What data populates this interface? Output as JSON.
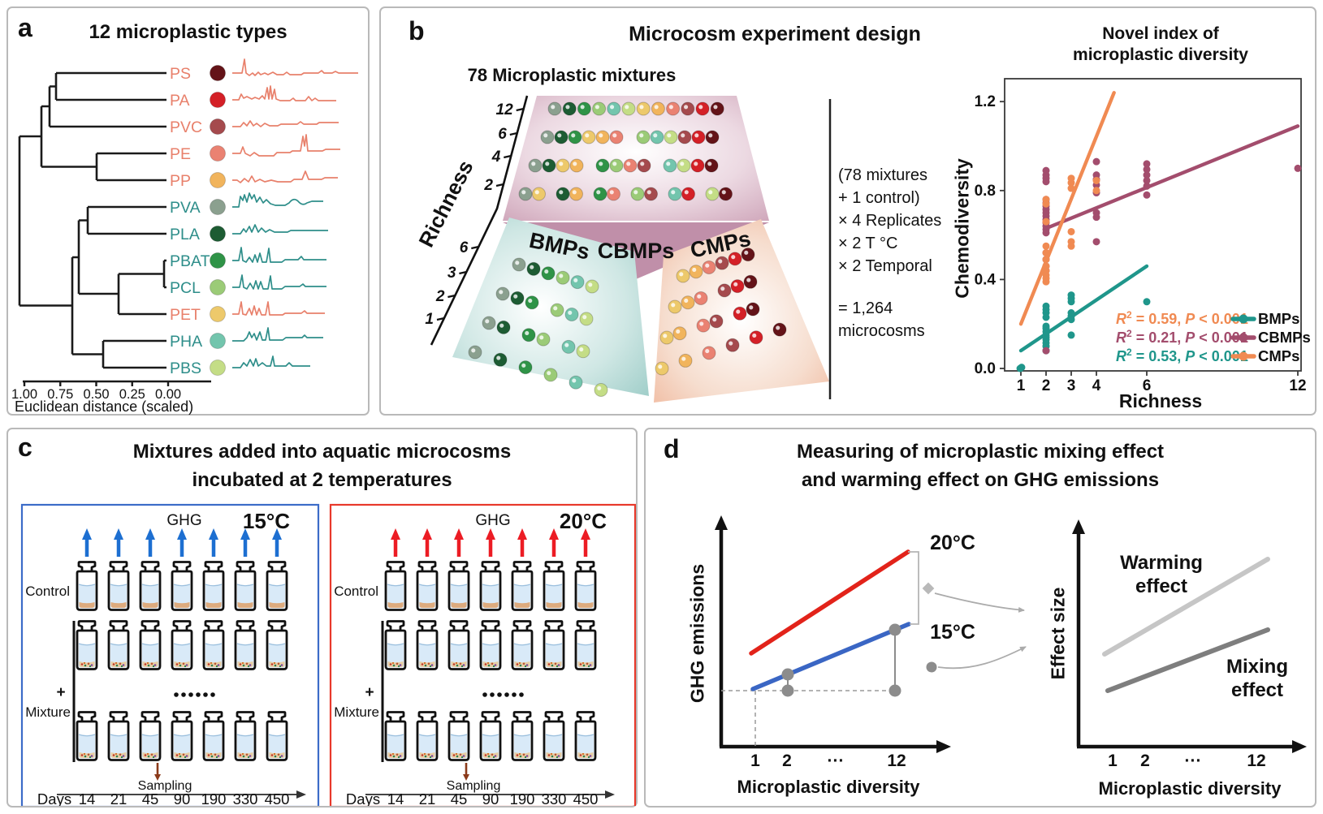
{
  "palette": {
    "grayGreen": "#8ba08f",
    "darkGreen": "#1d5c33",
    "green": "#2f9347",
    "lightGreen": "#9bcb77",
    "tealGreen": "#73c5ad",
    "lime": "#c4dd86",
    "yellow": "#edc96b",
    "orange": "#f1b45c",
    "salmon": "#ea8272",
    "brownRed": "#a54a4d",
    "red": "#d42027",
    "maroon": "#641318"
  },
  "figure": {
    "panel_a": {
      "label": "a",
      "title": "12 microplastic types",
      "group_colors": {
        "petro": "#e8806b",
        "bio": "#2e8e8a"
      },
      "types": [
        {
          "name": "PS",
          "group": "petro",
          "color": "maroon"
        },
        {
          "name": "PA",
          "group": "petro",
          "color": "red"
        },
        {
          "name": "PVC",
          "group": "petro",
          "color": "brownRed"
        },
        {
          "name": "PE",
          "group": "petro",
          "color": "salmon"
        },
        {
          "name": "PP",
          "group": "petro",
          "color": "orange"
        },
        {
          "name": "PVA",
          "group": "bio",
          "color": "grayGreen"
        },
        {
          "name": "PLA",
          "group": "bio",
          "color": "darkGreen"
        },
        {
          "name": "PBAT",
          "group": "bio",
          "color": "green"
        },
        {
          "name": "PCL",
          "group": "bio",
          "color": "lightGreen"
        },
        {
          "name": "PET",
          "group": "petro",
          "color": "yellow"
        },
        {
          "name": "PHA",
          "group": "bio",
          "color": "tealGreen"
        },
        {
          "name": "PBS",
          "group": "bio",
          "color": "lime"
        }
      ],
      "axis_ticks": [
        "1.00",
        "0.75",
        "0.50",
        "0.25",
        "0.00"
      ],
      "axis_label": "Euclidean distance (scaled)"
    },
    "panel_b": {
      "label": "b",
      "title": "Microcosm experiment design",
      "subtitle": "78 Microplastic mixtures",
      "richness_axis_label": "Richness",
      "upper_ticks": [
        "12",
        "6",
        "4",
        "2"
      ],
      "lower_ticks": [
        "6",
        "3",
        "2",
        "1"
      ],
      "group_labels": {
        "cbmps": "CBMPs",
        "bmps": "BMPs",
        "cmps": "CMPs"
      },
      "stats_lines": [
        "(78 mixtures",
        " + 1 control)",
        "× 4 Replicates",
        "× 2 T °C",
        "× 2 Temporal",
        "= 1,264",
        "microcosms"
      ],
      "cbmps_rows": [
        [
          [
            "grayGreen",
            "darkGreen",
            "green",
            "lightGreen",
            "tealGreen",
            "lime",
            "yellow",
            "orange",
            "salmon",
            "brownRed",
            "red",
            "maroon"
          ]
        ],
        [
          [
            "grayGreen",
            "darkGreen",
            "green",
            "yellow",
            "orange",
            "salmon"
          ],
          [
            "lightGreen",
            "tealGreen",
            "lime",
            "brownRed",
            "red",
            "maroon"
          ]
        ],
        [
          [
            "grayGreen",
            "darkGreen",
            "yellow",
            "orange"
          ],
          [
            "green",
            "lightGreen",
            "salmon",
            "brownRed"
          ],
          [
            "tealGreen",
            "lime",
            "red",
            "maroon"
          ]
        ],
        [
          [
            "grayGreen",
            "yellow"
          ],
          [
            "darkGreen",
            "orange"
          ],
          [
            "green",
            "salmon"
          ],
          [
            "lightGreen",
            "brownRed"
          ],
          [
            "tealGreen",
            "red"
          ],
          [
            "lime",
            "maroon"
          ]
        ]
      ],
      "bmps_rows": [
        [
          [
            "grayGreen",
            "darkGreen",
            "green",
            "lightGreen",
            "tealGreen",
            "lime"
          ]
        ],
        [
          [
            "grayGreen",
            "darkGreen",
            "green"
          ],
          [
            "lightGreen",
            "tealGreen",
            "lime"
          ]
        ],
        [
          [
            "grayGreen",
            "darkGreen"
          ],
          [
            "green",
            "lightGreen"
          ],
          [
            "tealGreen",
            "lime"
          ]
        ],
        [
          [
            "grayGreen"
          ],
          [
            "darkGreen"
          ],
          [
            "green"
          ],
          [
            "lightGreen"
          ],
          [
            "tealGreen"
          ],
          [
            "lime"
          ]
        ]
      ],
      "cmps_rows": [
        [
          [
            "yellow",
            "orange",
            "salmon",
            "brownRed",
            "red",
            "maroon"
          ]
        ],
        [
          [
            "yellow",
            "orange",
            "salmon"
          ],
          [
            "brownRed",
            "red",
            "maroon"
          ]
        ],
        [
          [
            "yellow",
            "orange"
          ],
          [
            "salmon",
            "brownRed"
          ],
          [
            "red",
            "maroon"
          ]
        ],
        [
          [
            "yellow"
          ],
          [
            "orange"
          ],
          [
            "salmon"
          ],
          [
            "brownRed"
          ],
          [
            "red"
          ],
          [
            "maroon"
          ]
        ]
      ],
      "scatter": {
        "title_line1": "Novel index of",
        "title_line2": "microplastic diversity",
        "y_tick_labels": [
          "0.0",
          "0.4",
          "0.8",
          "1.2"
        ],
        "x_tick_labels": [
          "1",
          "2",
          "3",
          "4",
          "6",
          "12"
        ]
      }
    },
    "panel_c": {
      "label": "c",
      "title_line1": "Mixtures added into aquatic microcosms",
      "title_line2": "incubated at 2 temperatures",
      "ghg_label": "GHG",
      "control_label": "Control",
      "plus_sign": "+",
      "mixture_label": "Mixture",
      "dots_ellipsis": "••••••",
      "sampling_label": "Sampling",
      "days_label": "Days",
      "days": [
        "14",
        "21",
        "45",
        "90",
        "190",
        "330",
        "450"
      ],
      "blocks": [
        {
          "temp": "15°C",
          "border_color": "#3c6cc8",
          "arrow_color": "#1d6fd1"
        },
        {
          "temp": "20°C",
          "border_color": "#e8392b",
          "arrow_color": "#ec1c24"
        }
      ]
    },
    "panel_d": {
      "label": "d",
      "title_line1": "Measuring of microplastic mixing effect",
      "title_line2": "and warming effect on GHG emissions",
      "left_plot": {
        "ylabel": "GHG emissions",
        "xlabel": "Microplastic diversity",
        "x_ticks": [
          "1",
          "2",
          "···",
          "12"
        ],
        "label_20": "20°C",
        "label_15": "15°C",
        "color_20": "#e2231a",
        "color_15": "#3a66c4",
        "gray_dot_color": "#8c8c8c"
      },
      "right_plot": {
        "ylabel": "Effect size",
        "xlabel": "Microplastic diversity",
        "x_ticks": [
          "1",
          "2",
          "···",
          "12"
        ],
        "warming_label": [
          "Warming",
          "effect"
        ],
        "mixing_label": [
          "Mixing",
          "effect"
        ],
        "warming_color": "#c6c6c6",
        "mixing_color": "#7e7e7e"
      }
    }
  },
  "chart_data": {
    "type": "scatter",
    "title": "Novel index of microplastic diversity",
    "xlabel": "Richness",
    "ylabel": "Chemodiversity",
    "x_ticks": [
      1,
      2,
      3,
      4,
      6,
      12
    ],
    "y_ticks": [
      0.0,
      0.4,
      0.8,
      1.2
    ],
    "xlim": [
      0.45,
      12.6
    ],
    "ylim": [
      -0.08,
      1.32
    ],
    "legend_position": "inside bottom-right",
    "stats_order": [
      "CMPs",
      "CBMPs",
      "BMPs"
    ],
    "series": [
      {
        "name": "BMPs",
        "color": "#1f968b",
        "r2": "0.53",
        "p": "< 0.001",
        "trend": [
          [
            1,
            0.08
          ],
          [
            6,
            0.46
          ]
        ],
        "points": [
          [
            0.97,
            0.0
          ],
          [
            1.03,
            0.005
          ],
          [
            2,
            0.08
          ],
          [
            2,
            0.1
          ],
          [
            2,
            0.115
          ],
          [
            2,
            0.13
          ],
          [
            2,
            0.14
          ],
          [
            2,
            0.15
          ],
          [
            2,
            0.165
          ],
          [
            2,
            0.18
          ],
          [
            2,
            0.19
          ],
          [
            2,
            0.23
          ],
          [
            2,
            0.25
          ],
          [
            2,
            0.265
          ],
          [
            2,
            0.28
          ],
          [
            3,
            0.15
          ],
          [
            3,
            0.22
          ],
          [
            3,
            0.235
          ],
          [
            3,
            0.25
          ],
          [
            3,
            0.3
          ],
          [
            3,
            0.315
          ],
          [
            3,
            0.33
          ],
          [
            6,
            0.3
          ]
        ]
      },
      {
        "name": "CBMPs",
        "color": "#a34d6d",
        "r2": "0.21",
        "p": "< 0.001",
        "trend": [
          [
            2,
            0.63
          ],
          [
            12,
            1.09
          ]
        ],
        "points": [
          [
            2,
            0.08
          ],
          [
            2,
            0.44
          ],
          [
            2,
            0.46
          ],
          [
            2,
            0.49
          ],
          [
            2,
            0.52
          ],
          [
            2,
            0.61
          ],
          [
            2,
            0.625
          ],
          [
            2,
            0.64
          ],
          [
            2,
            0.655
          ],
          [
            2,
            0.67
          ],
          [
            2,
            0.685
          ],
          [
            2,
            0.7
          ],
          [
            2,
            0.715
          ],
          [
            2,
            0.73
          ],
          [
            2,
            0.745
          ],
          [
            2,
            0.76
          ],
          [
            2,
            0.84
          ],
          [
            2,
            0.855
          ],
          [
            2,
            0.87
          ],
          [
            2,
            0.89
          ],
          [
            4,
            0.57
          ],
          [
            4,
            0.68
          ],
          [
            4,
            0.7
          ],
          [
            4,
            0.79
          ],
          [
            4,
            0.825
          ],
          [
            4,
            0.85
          ],
          [
            4,
            0.87
          ],
          [
            4,
            0.93
          ],
          [
            6,
            0.78
          ],
          [
            6,
            0.82
          ],
          [
            6,
            0.845
          ],
          [
            6,
            0.87
          ],
          [
            6,
            0.895
          ],
          [
            6,
            0.92
          ],
          [
            12,
            0.9
          ]
        ]
      },
      {
        "name": "CMPs",
        "color": "#f08a52",
        "r2": "0.59",
        "p": "< 0.001",
        "trend": [
          [
            1,
            0.2
          ],
          [
            4.7,
            1.24
          ]
        ],
        "points": [
          [
            2,
            0.39
          ],
          [
            2,
            0.405
          ],
          [
            2,
            0.42
          ],
          [
            2,
            0.44
          ],
          [
            2,
            0.46
          ],
          [
            2,
            0.49
          ],
          [
            2,
            0.52
          ],
          [
            2,
            0.55
          ],
          [
            2,
            0.66
          ],
          [
            2,
            0.74
          ],
          [
            2,
            0.76
          ],
          [
            3,
            0.55
          ],
          [
            3,
            0.57
          ],
          [
            3,
            0.615
          ],
          [
            3,
            0.81
          ],
          [
            3,
            0.835
          ],
          [
            3,
            0.855
          ],
          [
            4,
            0.8
          ],
          [
            4,
            0.845
          ]
        ]
      }
    ]
  }
}
